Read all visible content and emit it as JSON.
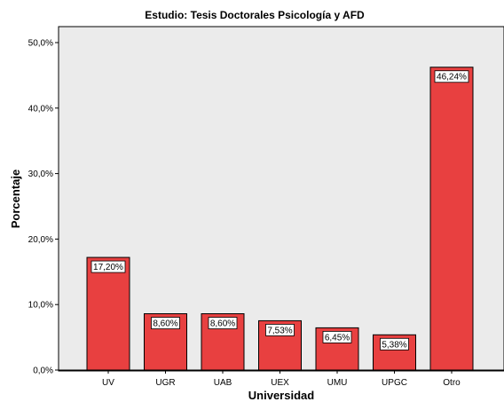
{
  "chart_data": {
    "type": "bar",
    "title": "Estudio: Tesis Doctorales Psicología y AFD",
    "xlabel": "Universidad",
    "ylabel": "Porcentaje",
    "categories": [
      "UV",
      "UGR",
      "UAB",
      "UEX",
      "UMU",
      "UPGC",
      "Otro"
    ],
    "values": [
      17.2,
      8.6,
      8.6,
      7.53,
      6.45,
      5.38,
      46.24
    ],
    "data_labels": [
      "17,20%",
      "8,60%",
      "8,60%",
      "7,53%",
      "6,45%",
      "5,38%",
      "46,24%"
    ],
    "yticks": [
      0,
      10,
      20,
      30,
      40,
      50
    ],
    "ytick_labels": [
      "0,0%",
      "10,0%",
      "20,0%",
      "30,0%",
      "40,0%",
      "50,0%"
    ],
    "ylim": [
      0,
      50
    ],
    "grid": false,
    "legend": "none",
    "colors": {
      "bar": "#e84040",
      "bar_stroke": "#000000",
      "plot_background": "#ebebeb",
      "plot_border": "#000000"
    }
  }
}
